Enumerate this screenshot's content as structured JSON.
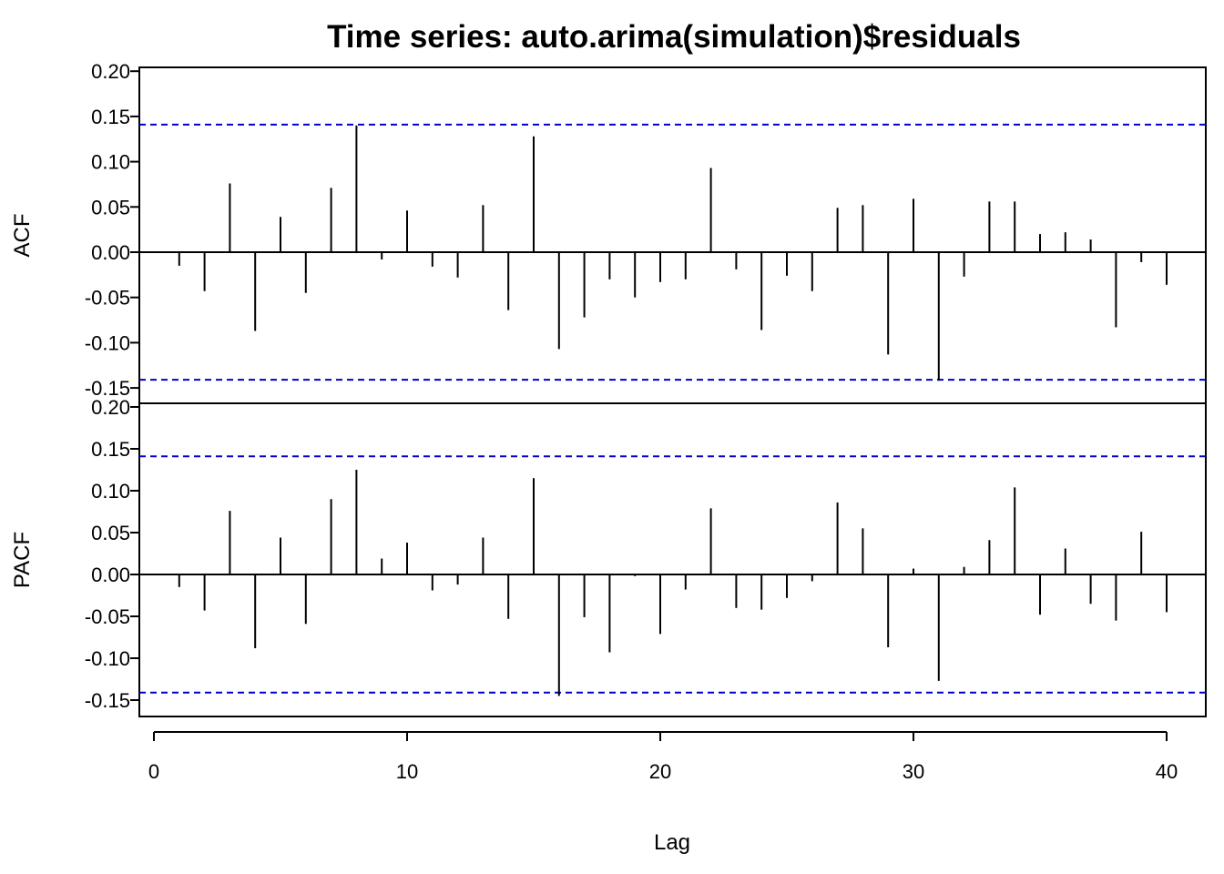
{
  "chart_data": [
    {
      "type": "bar",
      "panel": "acf",
      "title": "Time series:  auto.arima(simulation)$residuals",
      "xlabel": "",
      "ylabel": "ACF",
      "ylim": [
        -0.15,
        0.2
      ],
      "yticks": [
        "0.20",
        "0.15",
        "0.10",
        "0.05",
        "0.00",
        "-0.05",
        "-0.10",
        "-0.15"
      ],
      "lags": [
        1,
        2,
        3,
        4,
        5,
        6,
        7,
        8,
        9,
        10,
        11,
        12,
        13,
        14,
        15,
        16,
        17,
        18,
        19,
        20,
        21,
        22,
        23,
        24,
        25,
        26,
        27,
        28,
        29,
        30,
        31,
        32,
        33,
        34,
        35,
        36,
        37,
        38,
        39,
        40
      ],
      "values": [
        -0.015,
        -0.043,
        0.076,
        -0.087,
        0.039,
        -0.045,
        0.071,
        0.14,
        -0.008,
        0.046,
        -0.016,
        -0.028,
        0.052,
        -0.064,
        0.128,
        -0.107,
        -0.072,
        -0.03,
        -0.05,
        -0.033,
        -0.03,
        0.093,
        -0.019,
        -0.086,
        -0.026,
        -0.043,
        0.049,
        0.052,
        -0.113,
        0.059,
        -0.142,
        -0.027,
        0.056,
        0.056,
        0.02,
        0.022,
        0.014,
        -0.083,
        -0.011,
        -0.036
      ],
      "conf_limit": 0.141,
      "conf_color": "#0000cc",
      "grid": false
    },
    {
      "type": "bar",
      "panel": "pacf",
      "title": "",
      "xlabel": "Lag",
      "ylabel": "PACF",
      "ylim": [
        -0.15,
        0.2
      ],
      "xlim": [
        0,
        40
      ],
      "yticks": [
        "0.20",
        "0.15",
        "0.10",
        "0.05",
        "0.00",
        "-0.05",
        "-0.10",
        "-0.15"
      ],
      "xticks": [
        "0",
        "10",
        "20",
        "30",
        "40"
      ],
      "lags": [
        1,
        2,
        3,
        4,
        5,
        6,
        7,
        8,
        9,
        10,
        11,
        12,
        13,
        14,
        15,
        16,
        17,
        18,
        19,
        20,
        21,
        22,
        23,
        24,
        25,
        26,
        27,
        28,
        29,
        30,
        31,
        32,
        33,
        34,
        35,
        36,
        37,
        38,
        39,
        40
      ],
      "values": [
        -0.015,
        -0.043,
        0.076,
        -0.088,
        0.044,
        -0.059,
        0.09,
        0.125,
        0.019,
        0.038,
        -0.019,
        -0.012,
        0.044,
        -0.053,
        0.115,
        -0.145,
        -0.051,
        -0.093,
        -0.002,
        -0.071,
        -0.018,
        0.079,
        -0.04,
        -0.042,
        -0.028,
        -0.008,
        0.086,
        0.055,
        -0.087,
        0.007,
        -0.127,
        0.009,
        0.041,
        0.104,
        -0.048,
        0.031,
        -0.035,
        -0.055,
        0.051,
        -0.045
      ],
      "conf_limit": 0.141,
      "conf_color": "#0000cc",
      "grid": false
    }
  ]
}
